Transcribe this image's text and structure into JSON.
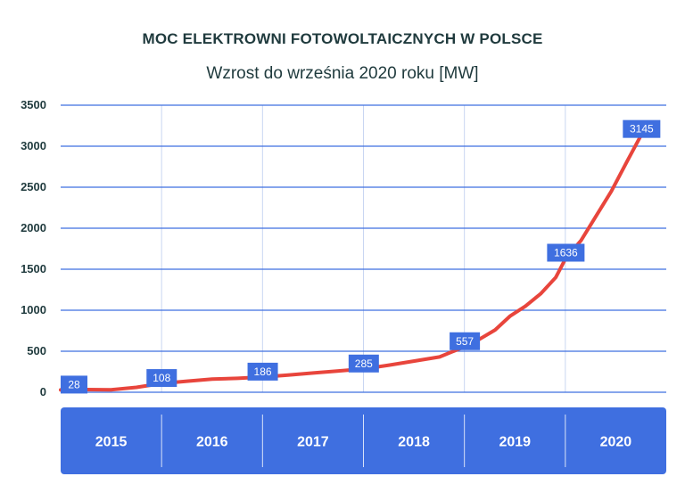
{
  "header": {
    "title": "MOC ELEKTROWNI FOTOWOLTAICZNYCH W POLSCE",
    "subtitle": "Wzrost do września 2020 roku [MW]"
  },
  "colors": {
    "line": "#e8453c",
    "grid": "#3f6fe0",
    "band": "#3f6fe0",
    "label_bg": "#3f6fe0",
    "year_divider": "#c9d6f2",
    "text": "#1f3a3d"
  },
  "chart_data": {
    "type": "line",
    "title": "MOC ELEKTROWNI FOTOWOLTAICZNYCH W POLSCE",
    "subtitle": "Wzrost do września 2020 roku [MW]",
    "xlabel": "",
    "ylabel": "",
    "ylim": [
      0,
      3500
    ],
    "yticks": [
      0,
      500,
      1000,
      1500,
      2000,
      2500,
      3000,
      3500
    ],
    "categories": [
      "2015",
      "2016",
      "2017",
      "2018",
      "2019",
      "2020"
    ],
    "xlim": [
      2015.0,
      2020.8
    ],
    "grid": true,
    "legend": "none",
    "series": [
      {
        "name": "",
        "x": [
          2015.0,
          2015.25,
          2015.5,
          2015.75,
          2016.0,
          2016.25,
          2016.5,
          2016.75,
          2017.0,
          2017.25,
          2017.5,
          2017.75,
          2018.0,
          2018.25,
          2018.5,
          2018.75,
          2019.0,
          2019.15,
          2019.3,
          2019.45,
          2019.6,
          2019.75,
          2019.9,
          2020.0,
          2020.15,
          2020.3,
          2020.45,
          2020.6,
          2020.75
        ],
        "y": [
          28,
          33,
          30,
          60,
          108,
          135,
          160,
          170,
          186,
          210,
          235,
          260,
          285,
          330,
          380,
          430,
          557,
          650,
          760,
          930,
          1050,
          1200,
          1400,
          1636,
          1850,
          2150,
          2450,
          2800,
          3145
        ]
      }
    ],
    "data_labels": [
      {
        "x": 2015.0,
        "y": 28,
        "text": "28"
      },
      {
        "x": 2016.0,
        "y": 108,
        "text": "108"
      },
      {
        "x": 2017.0,
        "y": 186,
        "text": "186"
      },
      {
        "x": 2018.0,
        "y": 285,
        "text": "285"
      },
      {
        "x": 2019.0,
        "y": 557,
        "text": "557"
      },
      {
        "x": 2020.0,
        "y": 1636,
        "text": "1636"
      },
      {
        "x": 2020.75,
        "y": 3145,
        "text": "3145"
      }
    ]
  }
}
